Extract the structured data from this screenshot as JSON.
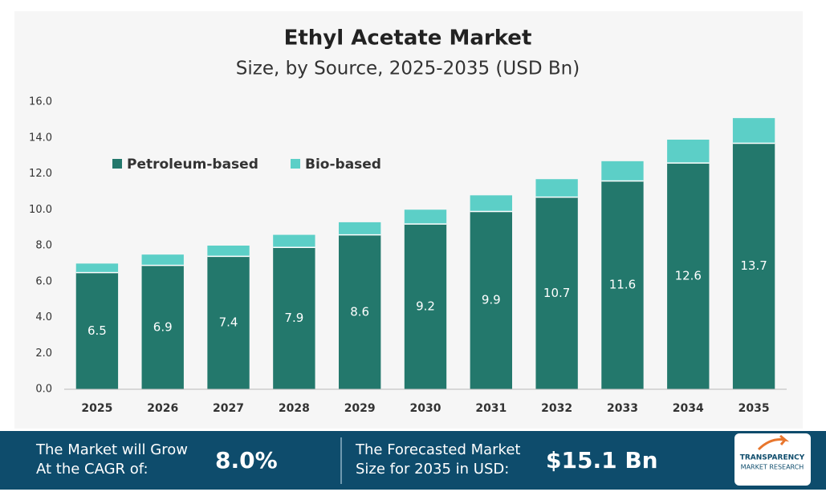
{
  "chart_data": {
    "type": "stacked_bar",
    "title": "Ethyl Acetate Market",
    "subtitle": "Size, by Source, 2025-2035 (USD Bn)",
    "categories": [
      "2025",
      "2026",
      "2027",
      "2028",
      "2029",
      "2030",
      "2031",
      "2032",
      "2033",
      "2034",
      "2035"
    ],
    "series": [
      {
        "name": "Petroleum-based",
        "color": "#23786c",
        "values": [
          6.5,
          6.9,
          7.4,
          7.9,
          8.6,
          9.2,
          9.9,
          10.7,
          11.6,
          12.6,
          13.7
        ],
        "show_labels": true
      },
      {
        "name": "Bio-based",
        "color": "#5ccfc7",
        "values": [
          0.5,
          0.6,
          0.6,
          0.7,
          0.7,
          0.8,
          0.9,
          1.0,
          1.1,
          1.3,
          1.4
        ],
        "show_labels": false
      }
    ],
    "ylim": [
      0,
      16
    ],
    "yticks": [
      {
        "value": 0,
        "label": "0.0"
      },
      {
        "value": 2,
        "label": "2.0"
      },
      {
        "value": 4,
        "label": "4.0"
      },
      {
        "value": 6,
        "label": "6.0"
      },
      {
        "value": 8,
        "label": "8.0"
      },
      {
        "value": 10,
        "label": "10.0"
      },
      {
        "value": 12,
        "label": "12.0"
      },
      {
        "value": 14,
        "label": "14.0"
      },
      {
        "value": 16,
        "label": "16.0"
      }
    ],
    "grid": false,
    "legend": "top-left"
  },
  "banner": {
    "cagr_text": [
      "The Market will Grow",
      "At the CAGR of:"
    ],
    "cagr_value": "8.0%",
    "forecast_text": [
      "The Forecasted Market",
      "Size for 2035 in USD:"
    ],
    "forecast_value": "$15.1 Bn",
    "logo": [
      "TRANSPARENCY",
      "MARKET RESEARCH"
    ]
  }
}
